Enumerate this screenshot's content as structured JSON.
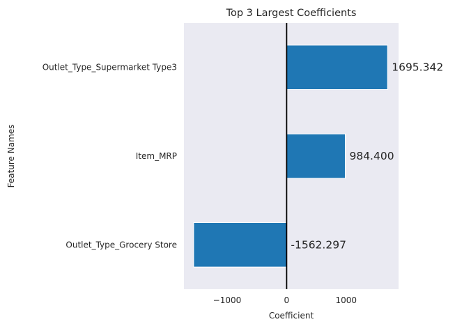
{
  "chart_data": {
    "type": "bar",
    "orientation": "horizontal",
    "title": "Top 3 Largest Coefficients",
    "xlabel": "Coefficient",
    "ylabel": "Feature Names",
    "categories": [
      "Outlet_Type_Supermarket Type3",
      "Item_MRP",
      "Outlet_Type_Grocery Store"
    ],
    "values": [
      1695.342,
      984.4,
      -1562.297
    ],
    "value_labels": [
      "1695.342",
      "984.400",
      "-1562.297"
    ],
    "xlim": [
      -1725,
      1880
    ],
    "xticks": [
      -1000,
      0,
      1000
    ],
    "xtick_labels": [
      "−1000",
      "0",
      "1000"
    ],
    "grid": false,
    "zero_line": true,
    "colors": {
      "bar": "#1f77b4",
      "plot_background": "#eaeaf2",
      "zero_line": "#000000",
      "text": "#262626"
    }
  }
}
